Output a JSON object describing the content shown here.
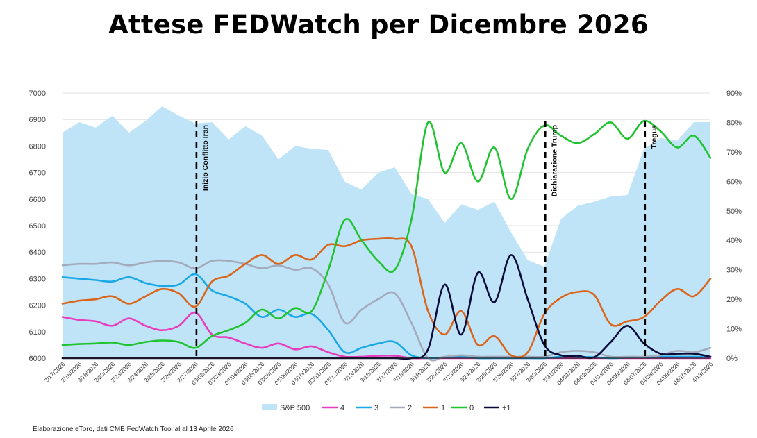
{
  "chart_data": {
    "type": "line",
    "title": "Attese FEDWatch per Dicembre 2026",
    "source": "Elaborazione eToro, dati CME FedWatch Tool al al 13 Aprile  2026",
    "categories": [
      "2/17/2026",
      "2/18/2026",
      "2/19/2026",
      "2/20/2026",
      "2/23/2026",
      "2/24/2026",
      "2/25/2026",
      "2/26/2026",
      "2/27/2026",
      "03/02/2026",
      "03/03/2026",
      "03/04/2026",
      "03/05/2026",
      "03/06/2026",
      "03/09/2026",
      "03/10/2026",
      "03/11/2026",
      "03/12/2026",
      "3/13/2026",
      "3/16/2026",
      "3/17/2026",
      "3/18/2026",
      "3/19/2026",
      "3/20/2026",
      "3/23/2026",
      "3/24/2026",
      "3/25/2026",
      "3/26/2026",
      "3/27/2026",
      "3/30/2026",
      "3/31/2026",
      "04/01/2026",
      "04/02/2026",
      "04/03/2026",
      "04/06/2026",
      "04/07/2026",
      "04/08/2026",
      "04/09/2026",
      "04/10/2026",
      "4/13/2026"
    ],
    "y_left": {
      "min": 6000,
      "max": 7000,
      "ticks": [
        "6000",
        "6100",
        "6200",
        "6300",
        "6400",
        "6500",
        "6600",
        "6700",
        "6800",
        "6900",
        "7000"
      ]
    },
    "y_right": {
      "min": 0,
      "max": 90,
      "ticks": [
        "0%",
        "10%",
        "20%",
        "30%",
        "40%",
        "50%",
        "60%",
        "70%",
        "80%",
        "90%"
      ]
    },
    "area": {
      "name": "S&P 500",
      "color": "#c0e4f7",
      "values": [
        6850,
        6890,
        6870,
        6915,
        6850,
        6895,
        6950,
        6915,
        6885,
        6890,
        6825,
        6875,
        6840,
        6750,
        6800,
        6790,
        6785,
        6665,
        6635,
        6700,
        6720,
        6620,
        6600,
        6510,
        6580,
        6560,
        6590,
        6475,
        6370,
        6345,
        6525,
        6575,
        6590,
        6610,
        6615,
        6790,
        6830,
        6820,
        6890,
        6890
      ]
    },
    "series": [
      {
        "name": "4",
        "color": "#e83cbe",
        "values": [
          14,
          13,
          12.5,
          11,
          13.5,
          11,
          9.5,
          11,
          15.5,
          8,
          7,
          5,
          3.5,
          5,
          3,
          4,
          2,
          0.5,
          0.5,
          0.8,
          0.8,
          0,
          0,
          0,
          0,
          0,
          0,
          0,
          0,
          0,
          0,
          0,
          0,
          0,
          0,
          0,
          0,
          0,
          0,
          0
        ]
      },
      {
        "name": "3",
        "color": "#1aa7e5",
        "values": [
          27.5,
          27,
          26.5,
          26,
          27.5,
          25.5,
          24.5,
          25,
          28.5,
          23,
          21,
          18.5,
          14,
          16.5,
          14,
          15,
          9.5,
          2,
          3.5,
          5,
          5.5,
          1,
          0,
          0.3,
          0.5,
          0,
          0,
          0,
          0,
          0,
          0.5,
          0.5,
          0.3,
          0,
          0.2,
          0.3,
          0.5,
          0.5,
          0.5,
          0.5
        ]
      },
      {
        "name": "2",
        "color": "#a3aabb",
        "values": [
          31.5,
          32,
          32,
          32.5,
          31.5,
          32.5,
          33,
          32.5,
          30.5,
          33,
          33,
          32,
          30.5,
          31.5,
          30,
          30.5,
          25,
          12,
          16.5,
          20,
          22,
          12,
          0,
          0.5,
          1,
          0.5,
          0.5,
          0.5,
          0.5,
          0.5,
          2,
          2.5,
          2,
          0.5,
          0.5,
          0.5,
          1,
          2.5,
          2,
          3.5
        ]
      },
      {
        "name": "1",
        "color": "#d9651c",
        "values": [
          18.5,
          19.5,
          20,
          21,
          18.5,
          21,
          23.5,
          22,
          17.5,
          26,
          28,
          32,
          35,
          32,
          35,
          33.5,
          38.5,
          38,
          40,
          40.5,
          40.5,
          38,
          16,
          8,
          16,
          4.5,
          7.5,
          1,
          2,
          15,
          20.5,
          22.5,
          21.5,
          11.5,
          12.5,
          14,
          19.5,
          23.5,
          21,
          27
        ]
      },
      {
        "name": "0",
        "color": "#1fc32f",
        "values": [
          4.5,
          4.8,
          5,
          5.3,
          4.5,
          5.5,
          6,
          5.5,
          3.5,
          7.5,
          9.5,
          12,
          16.5,
          13.5,
          17,
          16,
          30,
          47,
          40,
          33,
          30,
          47,
          80,
          63,
          73,
          60,
          71.5,
          54,
          71,
          79,
          75.5,
          73,
          76,
          80,
          74.5,
          80.5,
          77,
          71.5,
          75.5,
          68
        ]
      },
      {
        "name": "+1",
        "color": "#0a0a3a",
        "values": [
          0,
          0,
          0,
          0,
          0,
          0,
          0,
          0,
          0,
          0,
          0,
          0,
          0,
          0,
          0,
          0,
          0,
          0,
          0,
          0,
          0,
          0,
          3,
          25,
          8,
          29,
          19,
          35,
          20,
          4.5,
          1,
          0.8,
          0.3,
          5.5,
          11,
          5,
          1.5,
          1.5,
          1.5,
          0.5
        ]
      }
    ],
    "events": [
      {
        "label": "Inizio Conflitto Iran",
        "at": "2/27/2026"
      },
      {
        "label": "Dichiarazione Trump",
        "at": "3/30/2026"
      },
      {
        "label": "Tregua",
        "at": "04/07/2026"
      }
    ],
    "legend": [
      "S&P  500",
      "4",
      "3",
      "2",
      "1",
      "0",
      "+1"
    ],
    "legend_position": "bottom-center"
  }
}
